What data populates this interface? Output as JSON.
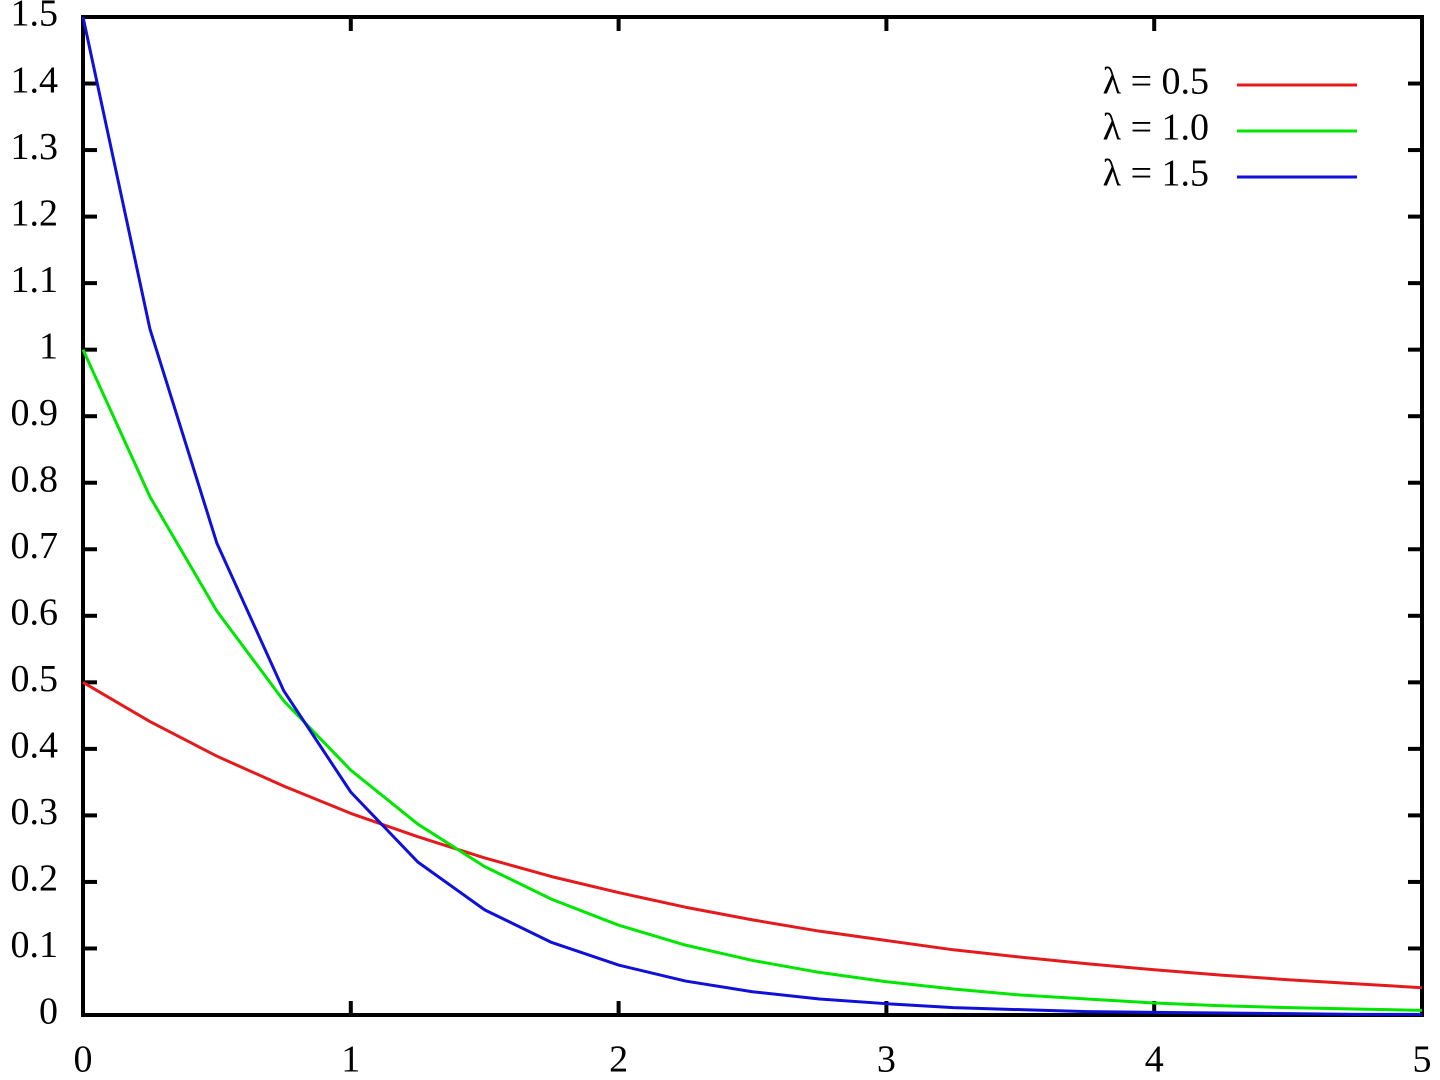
{
  "chart_data": {
    "type": "line",
    "x": [
      0,
      0.25,
      0.5,
      0.75,
      1,
      1.25,
      1.5,
      1.75,
      2,
      2.25,
      2.5,
      2.75,
      3,
      3.25,
      3.5,
      3.75,
      4,
      4.25,
      4.5,
      4.75,
      5
    ],
    "series": [
      {
        "name": "λ = 0.5",
        "color": "#e41a1c",
        "values": [
          0.5,
          0.441,
          0.389,
          0.344,
          0.303,
          0.268,
          0.236,
          0.208,
          0.184,
          0.162,
          0.143,
          0.126,
          0.112,
          0.098,
          0.087,
          0.077,
          0.068,
          0.06,
          0.053,
          0.047,
          0.041
        ]
      },
      {
        "name": "λ = 1.0",
        "color": "#00e600",
        "values": [
          1,
          0.779,
          0.607,
          0.472,
          0.368,
          0.287,
          0.223,
          0.174,
          0.135,
          0.105,
          0.082,
          0.064,
          0.05,
          0.039,
          0.03,
          0.024,
          0.018,
          0.014,
          0.011,
          0.009,
          0.007
        ]
      },
      {
        "name": "λ = 1.5",
        "color": "#1010d8",
        "values": [
          1.5,
          1.031,
          0.709,
          0.487,
          0.335,
          0.23,
          0.158,
          0.109,
          0.075,
          0.051,
          0.035,
          0.024,
          0.017,
          0.011,
          0.008,
          0.005,
          0.004,
          0.003,
          0.002,
          0.001,
          0.001
        ]
      }
    ],
    "xlim": [
      0,
      5
    ],
    "xticks": [
      0,
      1,
      2,
      3,
      4,
      5
    ],
    "ylim": [
      0,
      1.5
    ],
    "yticks": [
      0,
      0.1,
      0.2,
      0.3,
      0.4,
      0.5,
      0.6,
      0.7,
      0.8,
      0.9,
      1,
      1.1,
      1.2,
      1.3,
      1.4,
      1.5
    ],
    "grid": false,
    "legend": "top-right"
  }
}
